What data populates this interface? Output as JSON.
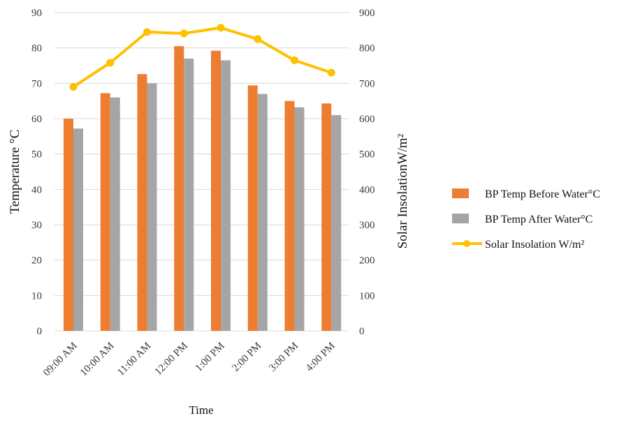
{
  "chart_data": {
    "type": "bar",
    "categories": [
      "09:00 AM",
      "10:00 AM",
      "11:00 AM",
      "12:00 PM",
      "1:00 PM",
      "2:00 PM",
      "3:00 PM",
      "4:00 PM"
    ],
    "xlabel": "Time",
    "ylabel": "Temperature  °C",
    "y2label": "Solar  InsolationW/m²",
    "ylim": [
      0,
      90
    ],
    "y2lim": [
      0,
      900
    ],
    "yticks": [
      "0",
      "10",
      "20",
      "30",
      "40",
      "50",
      "60",
      "70",
      "80",
      "90"
    ],
    "y2ticks": [
      "0",
      "100",
      "200",
      "300",
      "400",
      "500",
      "600",
      "700",
      "800",
      "900"
    ],
    "grid": true,
    "legend_position": "right",
    "series": [
      {
        "name": "BP Temp Before Water°C",
        "kind": "bar",
        "axis": "left",
        "color": "#ED7D31",
        "values": [
          60,
          67.2,
          72.6,
          80.5,
          79.2,
          69.4,
          65.0,
          64.3
        ]
      },
      {
        "name": "BP Temp After Water°C",
        "kind": "bar",
        "axis": "left",
        "color": "#A5A5A5",
        "values": [
          57.2,
          66.0,
          70.0,
          77.0,
          76.5,
          67.0,
          63.2,
          61.0
        ]
      },
      {
        "name": "Solar Insolation W/m²",
        "kind": "line",
        "axis": "right",
        "color": "#FFC000",
        "values": [
          690,
          758,
          845,
          841,
          857,
          825,
          765,
          730
        ]
      }
    ]
  }
}
